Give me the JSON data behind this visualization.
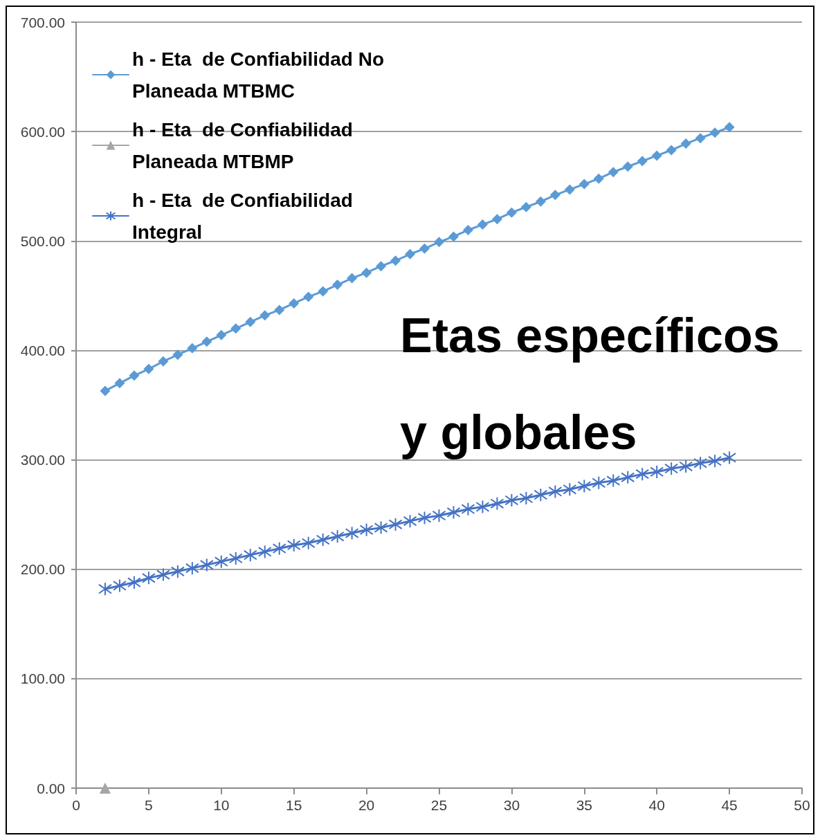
{
  "chart_data": {
    "type": "line",
    "title": "Etas específicos y globales",
    "x": [
      2,
      3,
      4,
      5,
      6,
      7,
      8,
      9,
      10,
      11,
      12,
      13,
      14,
      15,
      16,
      17,
      18,
      19,
      20,
      21,
      22,
      23,
      24,
      25,
      26,
      27,
      28,
      29,
      30,
      31,
      32,
      33,
      34,
      35,
      36,
      37,
      38,
      39,
      40,
      41,
      42,
      43,
      44,
      45
    ],
    "series": [
      {
        "name": "h - Eta  de Confiabilidad No Planeada MTBMC",
        "color": "#5b9bd5",
        "marker": "diamond",
        "values": [
          363,
          370,
          377,
          383,
          390,
          396,
          402,
          408,
          414,
          420,
          426,
          432,
          437,
          443,
          449,
          454,
          460,
          466,
          471,
          477,
          482,
          488,
          493,
          499,
          504,
          510,
          515,
          520,
          526,
          531,
          536,
          542,
          547,
          552,
          557,
          563,
          568,
          573,
          578,
          583,
          589,
          594,
          599,
          604
        ]
      },
      {
        "name": "h - Eta  de Confiabilidad Planeada MTBMP",
        "color": "#a5a5a5",
        "marker": "triangle",
        "x": [
          2
        ],
        "values": [
          0
        ]
      },
      {
        "name": "h - Eta  de Confiabilidad Integral",
        "color": "#4472c4",
        "marker": "cross",
        "values": [
          182,
          185,
          188,
          192,
          195,
          198,
          201,
          204,
          207,
          210,
          213,
          216,
          219,
          222,
          224,
          227,
          230,
          233,
          236,
          238,
          241,
          244,
          247,
          249,
          252,
          255,
          257,
          260,
          263,
          265,
          268,
          271,
          273,
          276,
          279,
          281,
          284,
          287,
          289,
          292,
          294,
          297,
          299,
          302
        ]
      }
    ],
    "xlim": [
      0,
      50
    ],
    "xticks": [
      0,
      5,
      10,
      15,
      20,
      25,
      30,
      35,
      40,
      45,
      50
    ],
    "ylim": [
      0,
      700
    ],
    "yticks": [
      {
        "value": 0,
        "label": "0.00"
      },
      {
        "value": 100,
        "label": "100.00"
      },
      {
        "value": 200,
        "label": "200.00"
      },
      {
        "value": 300,
        "label": "300.00"
      },
      {
        "value": 400,
        "label": "400.00"
      },
      {
        "value": 500,
        "label": "500.00"
      },
      {
        "value": 600,
        "label": "600.00"
      },
      {
        "value": 700,
        "label": "700.00"
      }
    ],
    "grid": "y",
    "legend": "top left"
  }
}
